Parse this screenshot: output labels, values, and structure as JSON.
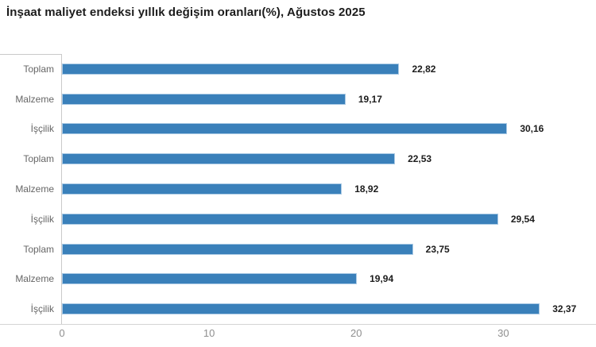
{
  "title": "İnşaat maliyet endeksi yıllık değişim oranları(%), Ağustos 2025",
  "chart_data": {
    "type": "bar",
    "orientation": "horizontal",
    "title": "İnşaat maliyet endeksi yıllık değişim oranları(%), Ağustos 2025",
    "categories": [
      "Toplam",
      "Malzeme",
      "İşçilik",
      "Toplam",
      "Malzeme",
      "İşçilik",
      "Toplam",
      "Malzeme",
      "İşçilik"
    ],
    "values": [
      22.82,
      19.17,
      30.16,
      22.53,
      18.92,
      29.54,
      23.75,
      19.94,
      32.37
    ],
    "value_labels": [
      "22,82",
      "19,17",
      "30,16",
      "22,53",
      "18,92",
      "29,54",
      "23,75",
      "19,94",
      "32,37"
    ],
    "xlabel": "",
    "ylabel": "",
    "xlim": [
      0,
      36.3
    ],
    "x_ticks": [
      0,
      10,
      20,
      30
    ],
    "x_tick_labels": [
      "0",
      "10",
      "20",
      "30"
    ],
    "grid": false,
    "legend": false,
    "bar_color": "#3a80ba"
  },
  "colors": {
    "bar": "#3a80ba",
    "bar_edge": "#a9c9e4",
    "title_text": "#1c1c1c",
    "category_text": "#666666",
    "value_text": "#1c1c1c",
    "tick_text": "#8f8f8f",
    "axis_line": "#c9c9c9"
  }
}
